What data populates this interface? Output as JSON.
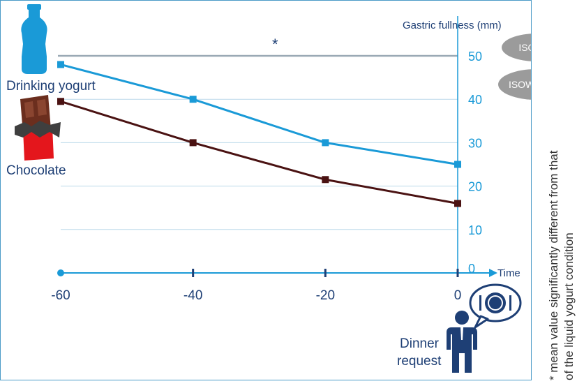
{
  "chart_data": {
    "type": "line",
    "title": "",
    "xlabel": "Time",
    "ylabel": "Gastric fullness (mm)",
    "x": [
      -60,
      -40,
      -20,
      0
    ],
    "xticks": [
      -60,
      -40,
      -20,
      0
    ],
    "xlim": [
      -60,
      0
    ],
    "yticks": [
      0,
      10,
      20,
      30,
      40,
      50
    ],
    "ylim": [
      0,
      50
    ],
    "grid": true,
    "series": [
      {
        "name": "Drinking yogurt",
        "values": [
          48,
          40,
          30,
          25
        ],
        "color": "#1a9ad7"
      },
      {
        "name": "Chocolate",
        "values": [
          39.5,
          30,
          21.5,
          16
        ],
        "color": "#4a1212"
      }
    ],
    "reference_line": {
      "value": 50,
      "color": "#9aa9b5"
    },
    "annotations": {
      "asterisk": "*",
      "badges": [
        "ISOCAL",
        "ISOWEIGHT"
      ],
      "dinner": "Dinner\nrequest",
      "footnote_line1": "* mean value significantly different from that",
      "footnote_line2": "of the liquid yogurt condition"
    },
    "colors": {
      "axis": "#1a9ad7",
      "text": "#1e3f75",
      "grid": "#bcd9ea",
      "badge": "#9b9b9b"
    }
  }
}
